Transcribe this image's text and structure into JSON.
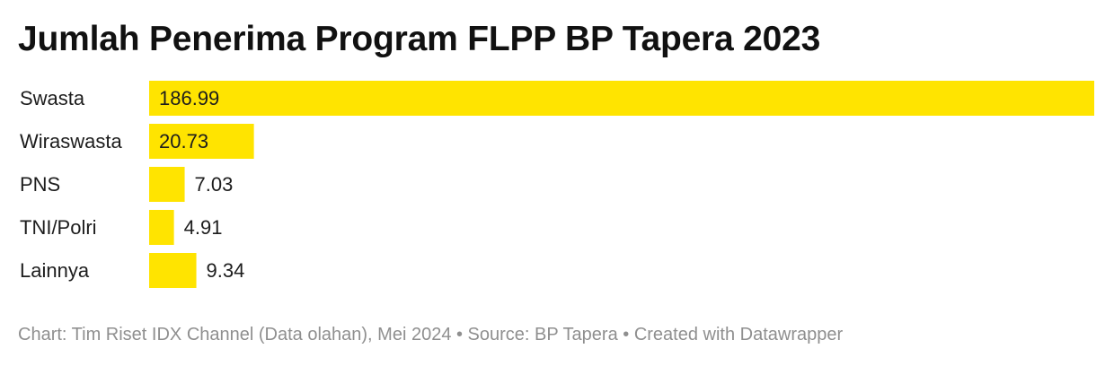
{
  "title": "Jumlah Penerima Program FLPP BP Tapera 2023",
  "footer": "Chart: Tim Riset IDX Channel (Data olahan), Mei 2024 • Source: BP Tapera • Created with Datawrapper",
  "colors": {
    "bar": "#ffe400",
    "text": "#1d1d1d",
    "footer": "#8f8f8f"
  },
  "chart_data": {
    "type": "bar",
    "orientation": "horizontal",
    "title": "Jumlah Penerima Program FLPP BP Tapera 2023",
    "categories": [
      "Swasta",
      "Wiraswasta",
      "PNS",
      "TNI/Polri",
      "Lainnya"
    ],
    "values": [
      186.99,
      20.73,
      7.03,
      4.91,
      9.34
    ],
    "value_labels": [
      "186.99",
      "20.73",
      "7.03",
      "4.91",
      "9.34"
    ],
    "xlim": [
      0,
      186.99
    ],
    "grid": false,
    "legend": "none"
  }
}
